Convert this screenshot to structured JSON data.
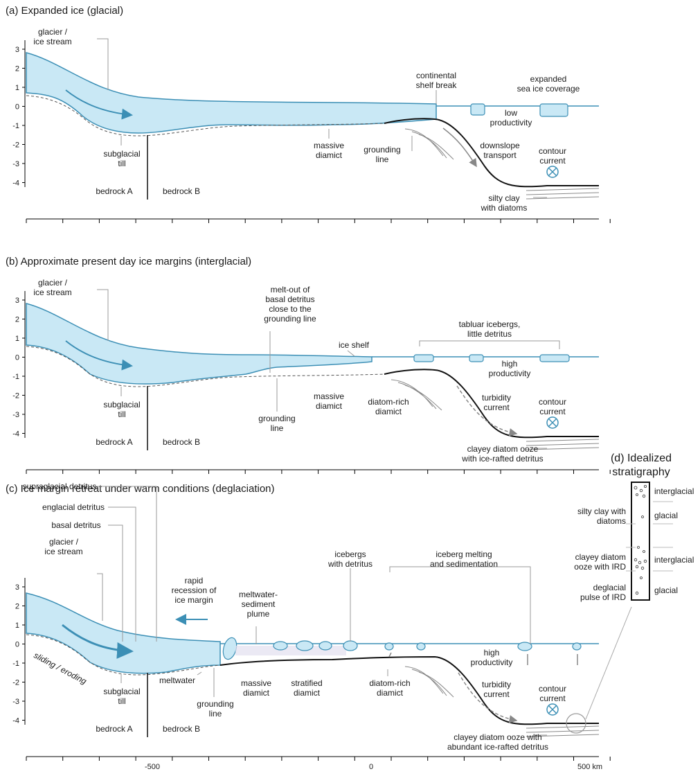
{
  "panels": [
    {
      "title": "(a) Expanded ice (glacial)",
      "labels": {
        "glacier": [
          "glacier /",
          "ice stream"
        ],
        "shelf_break": [
          "continental",
          "shelf break"
        ],
        "sea_ice": [
          "expanded",
          "sea ice coverage"
        ],
        "productivity": [
          "low",
          "productivity"
        ],
        "till": [
          "subglacial",
          "till"
        ],
        "diamict": [
          "massive",
          "diamict"
        ],
        "grounding": [
          "grounding",
          "line"
        ],
        "downslope": [
          "downslope",
          "transport"
        ],
        "contour": [
          "contour",
          "current"
        ],
        "bedrock_a": "bedrock A",
        "bedrock_b": "bedrock B",
        "silty": [
          "silty clay",
          "with diatoms"
        ]
      }
    },
    {
      "title": "(b) Approximate present day ice margins (interglacial)",
      "labels": {
        "glacier": [
          "glacier /",
          "ice stream"
        ],
        "meltout": [
          "melt-out of",
          "basal detritus",
          "close to the",
          "grounding line"
        ],
        "ice_shelf": "ice shelf",
        "tabular": [
          "tabluar icebergs,",
          "little detritus"
        ],
        "productivity": [
          "high",
          "productivity"
        ],
        "till": [
          "subglacial",
          "till"
        ],
        "diamict": [
          "massive",
          "diamict"
        ],
        "diatom_rich": [
          "diatom-rich",
          "diamict"
        ],
        "grounding": [
          "grounding",
          "line"
        ],
        "turbidity": [
          "turbidity",
          "current"
        ],
        "contour": [
          "contour",
          "current"
        ],
        "bedrock_a": "bedrock A",
        "bedrock_b": "bedrock B",
        "ooze": [
          "clayey diatom ooze",
          "with ice-rafted detritus"
        ]
      }
    },
    {
      "title": "(c) Ice margin retreat under warm conditions (deglaciation)",
      "labels": {
        "supra": "supraglacial detritus",
        "englacial": "englacial detritus",
        "basal": "basal detritus",
        "glacier": [
          "glacier /",
          "ice stream"
        ],
        "rapid": [
          "rapid",
          "recession of",
          "ice margin"
        ],
        "plume": [
          "meltwater-",
          "sediment",
          "plume"
        ],
        "icebergs": [
          "icebergs",
          "with detritus"
        ],
        "iceberg_melting": [
          "iceberg melting",
          "and sedimentation"
        ],
        "productivity": [
          "high",
          "productivity"
        ],
        "sliding": "sliding / eroding",
        "till": [
          "subglacial",
          "till"
        ],
        "meltwater": "meltwater",
        "grounding": [
          "grounding",
          "line"
        ],
        "diamict": [
          "massive",
          "diamict"
        ],
        "stratified": [
          "stratified",
          "diamict"
        ],
        "diatom_rich": [
          "diatom-rich",
          "diamict"
        ],
        "turbidity": [
          "turbidity",
          "current"
        ],
        "contour": [
          "contour",
          "current"
        ],
        "bedrock_a": "bedrock A",
        "bedrock_b": "bedrock B",
        "ooze": [
          "clayey diatom ooze with",
          "abundant ice-rafted detritus"
        ]
      }
    }
  ],
  "y_ticks": [
    "3",
    "2",
    "1",
    "0",
    "-1",
    "-2",
    "-3",
    "-4"
  ],
  "x_tick_labels": [
    "-500",
    "0",
    "500 km"
  ],
  "stratigraphy": {
    "title": [
      "(d) Idealized",
      "stratigraphy"
    ],
    "left_labels": [
      [
        "silty clay with",
        "diatoms"
      ],
      [
        "clayey diatom",
        "ooze with IRD"
      ],
      [
        "deglacial",
        "pulse of IRD"
      ]
    ],
    "right_labels": [
      "interglacial",
      "glacial",
      "interglacial",
      "glacial"
    ]
  },
  "colors": {
    "ice_fill": "#c9e8f5",
    "ice_stroke": "#3c8fb5",
    "seabed": "#111111",
    "leader": "#9a9a9a"
  }
}
